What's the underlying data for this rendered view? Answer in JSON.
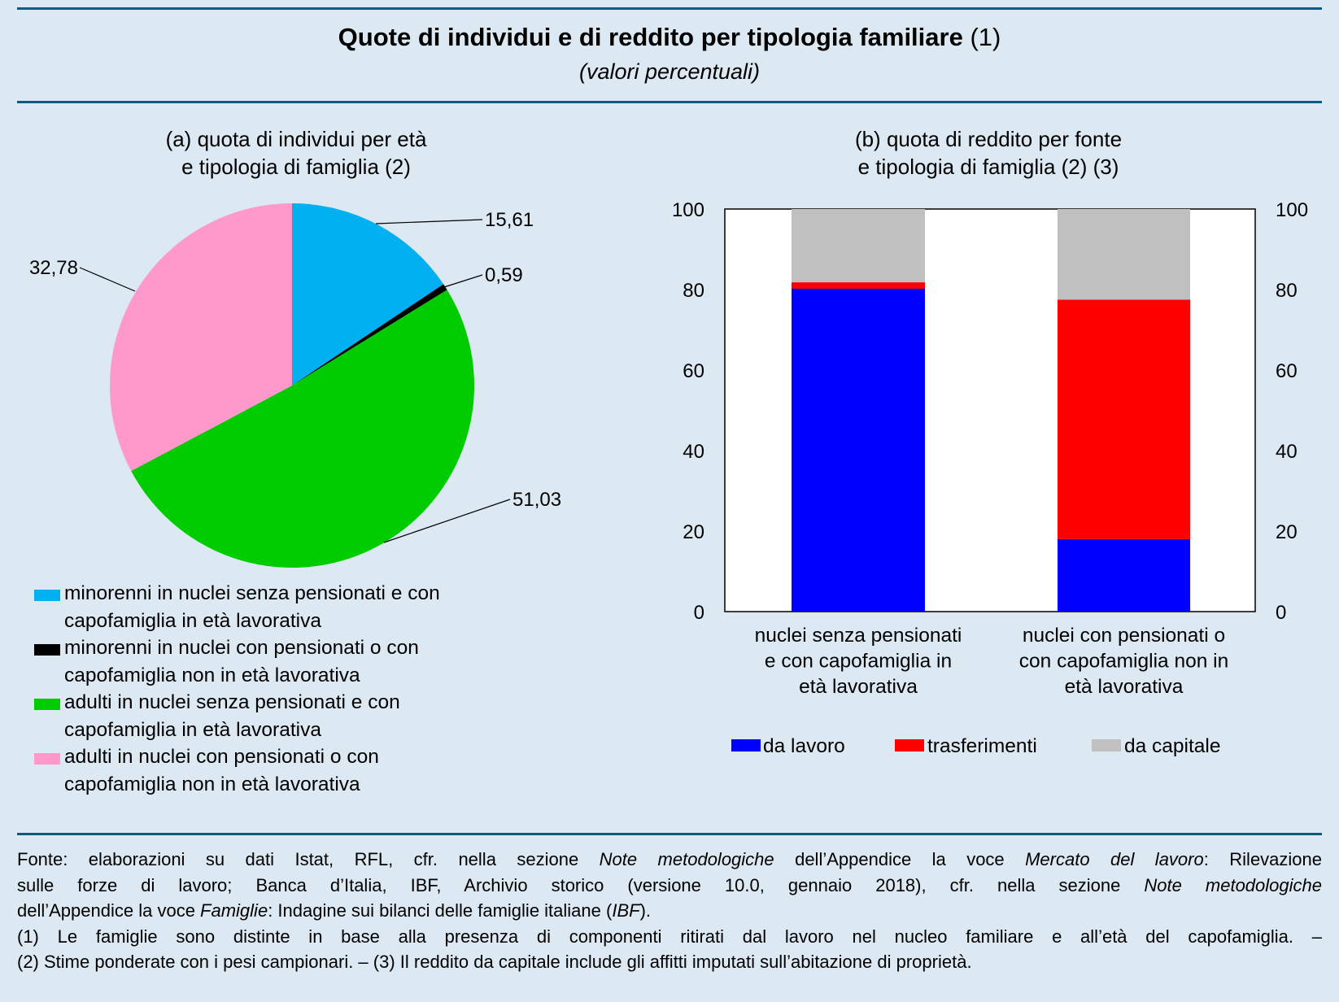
{
  "header": {
    "title": "Quote di individui e di reddito per tipologia familiare",
    "title_note": " (1)",
    "subtitle": "(valori percentuali)"
  },
  "colors": {
    "rule": "#0b5a80",
    "background": "#dce9f2"
  },
  "chart_data": [
    {
      "type": "pie",
      "title_lines": [
        "(a) quota di individui per età",
        "e tipologia di famiglia (2)"
      ],
      "slices": [
        {
          "legend_lines": [
            "minorenni in nuclei senza pensionati e con",
            "capofamiglia in età lavorativa"
          ],
          "value": 15.61,
          "label": "15,61",
          "color": "#00b0f0"
        },
        {
          "legend_lines": [
            "minorenni in nuclei con pensionati o con",
            "capofamiglia non in età lavorativa"
          ],
          "value": 0.59,
          "label": "0,59",
          "color": "#000000"
        },
        {
          "legend_lines": [
            "adulti in nuclei senza pensionati e con",
            "capofamiglia in età lavorativa"
          ],
          "value": 51.03,
          "label": "51,03",
          "color": "#00cc00"
        },
        {
          "legend_lines": [
            "adulti in nuclei con pensionati o con",
            "capofamiglia non in età lavorativa"
          ],
          "value": 32.78,
          "label": "32,78",
          "color": "#ff99cc"
        }
      ],
      "legend_placement": "bottom"
    },
    {
      "type": "bar",
      "stacked": true,
      "title_lines": [
        "(b) quota di reddito per fonte",
        "e tipologia di famiglia (2) (3)"
      ],
      "categories": [
        [
          "nuclei senza pensionati",
          "e con capofamiglia in",
          "età lavorativa"
        ],
        [
          "nuclei con pensionati o",
          "con capofamiglia non in",
          "età lavorativa"
        ]
      ],
      "series": [
        {
          "name": "da lavoro",
          "values": [
            80.2,
            18.0
          ],
          "color": "#0000ff"
        },
        {
          "name": "trasferimenti",
          "values": [
            1.6,
            59.5
          ],
          "color": "#ff0000"
        },
        {
          "name": "da capitale",
          "values": [
            18.2,
            22.5
          ],
          "color": "#c0c0c0"
        }
      ],
      "ylim": [
        0,
        100
      ],
      "yticks": [
        "0",
        "20",
        "40",
        "60",
        "80",
        "100"
      ],
      "yaxis": "both sides",
      "grid": false,
      "legend_placement": "bottom"
    }
  ],
  "footnotes": {
    "l1": [
      "Fonte: elaborazioni su dati Istat, RFL, cfr. nella sezione ",
      "Note metodologiche",
      " dell’Appendice la voce ",
      "Mercato del lavoro",
      ": Rilevazione"
    ],
    "l2": [
      "sulle forze di lavoro; Banca d’Italia, IBF, Archivio storico (versione 10.0, gennaio 2018), cfr. nella sezione ",
      "Note metodologiche"
    ],
    "l3": [
      "dell’Appendice la voce ",
      "Famiglie",
      ": Indagine sui bilanci delle famiglie italiane (",
      "IBF",
      ")."
    ],
    "l4": "(1) Le famiglie sono distinte in base alla presenza di componenti ritirati dal lavoro nel nucleo familiare e all’età del capofamiglia. –",
    "l5": "(2) Stime ponderate con i pesi campionari. – (3) Il reddito da capitale include gli affitti imputati sull’abitazione di proprietà."
  }
}
